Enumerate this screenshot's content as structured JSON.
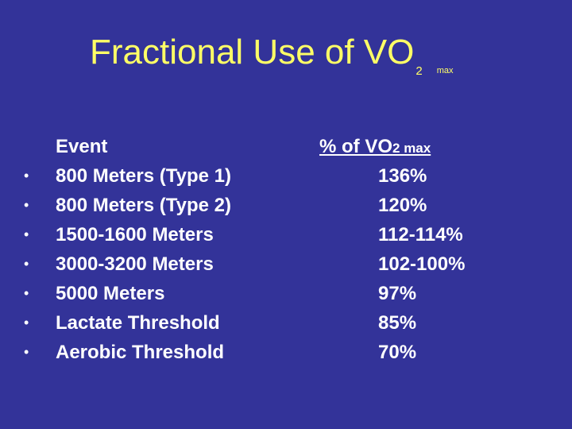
{
  "title": {
    "main": "Fractional Use of VO",
    "subscript": "2",
    "suffix": "max"
  },
  "table": {
    "event_header": "Event",
    "pct_header_prefix": "% of VO",
    "pct_header_sub": "2 max",
    "bullet": "•",
    "rows": [
      {
        "event": "800 Meters (Type 1)",
        "pct": "136%"
      },
      {
        "event": "800 Meters (Type 2)",
        "pct": "120%"
      },
      {
        "event": "1500-1600 Meters",
        "pct": "112-114%"
      },
      {
        "event": "3000-3200 Meters",
        "pct": "102-100%"
      },
      {
        "event": "5000 Meters",
        "pct": "97%"
      },
      {
        "event": "Lactate Threshold",
        "pct": "85%"
      },
      {
        "event": "Aerobic Threshold",
        "pct": "70%"
      }
    ]
  },
  "colors": {
    "background": "#333399",
    "title": "#ffff66",
    "text": "#ffffff"
  }
}
